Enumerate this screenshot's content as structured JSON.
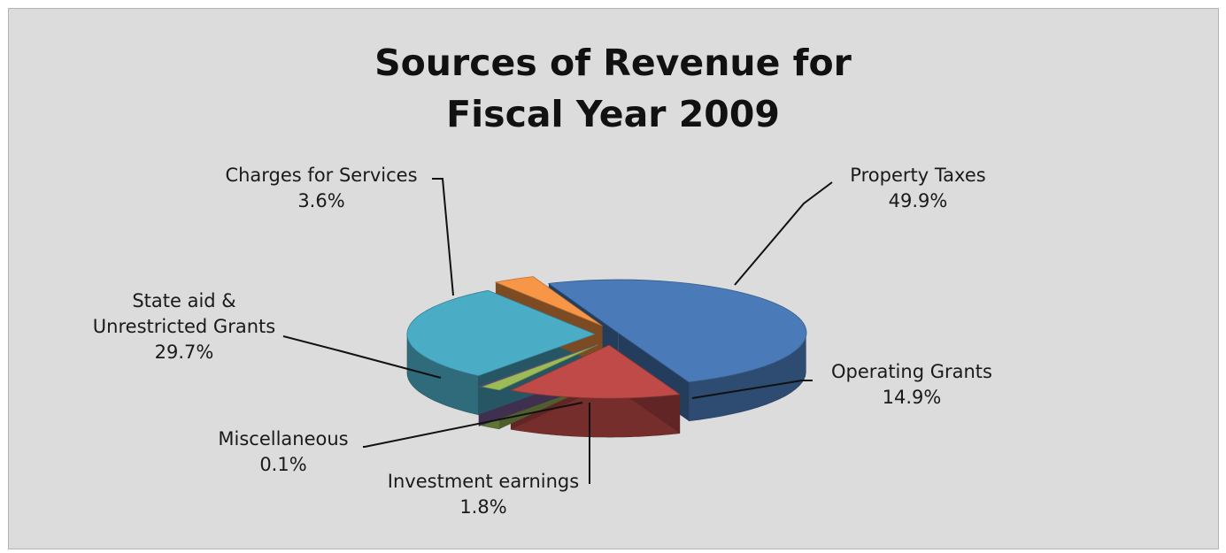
{
  "chart_data": {
    "type": "pie",
    "title": [
      "Sources of Revenue for",
      "Fiscal Year 2009"
    ],
    "slices": [
      {
        "name": "Property Taxes",
        "value": 49.9,
        "label": "49.9%",
        "color": "#4a7ab8"
      },
      {
        "name": "Operating Grants",
        "value": 14.9,
        "label": "14.9%",
        "color": "#bf4a47"
      },
      {
        "name": "Investment earnings",
        "value": 1.8,
        "label": "1.8%",
        "color": "#9bbb59"
      },
      {
        "name": "Miscellaneous",
        "value": 0.1,
        "label": "0.1%",
        "color": "#7d60a0"
      },
      {
        "name": "State aid &",
        "name_line2": "Unrestricted Grants",
        "value": 29.7,
        "label": "29.7%",
        "color": "#4bacc6"
      },
      {
        "name": "Charges for Services",
        "value": 3.6,
        "label": "3.6%",
        "color": "#f79646"
      }
    ],
    "exploded": true,
    "three_d": true
  }
}
